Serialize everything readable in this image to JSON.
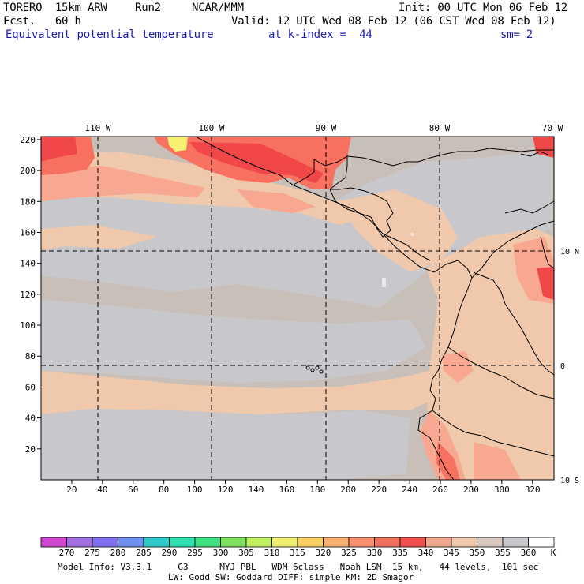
{
  "header": {
    "model": "TORERO  15km ARW",
    "run": "Run2",
    "center": "NCAR/MMM",
    "init": "Init: 00 UTC Mon 06 Feb 12",
    "fcst": "Fcst.   60 h",
    "valid": "Valid: 12 UTC Wed 08 Feb 12 (06 CST Wed 08 Feb 12)",
    "field": "Equivalent potential temperature",
    "level": "at k-index =  44",
    "smooth": "sm= 2"
  },
  "map": {
    "top_lon_labels": [
      "110 W",
      "100 W",
      "90 W",
      "80 W",
      "70 W"
    ],
    "right_lat_labels": [
      "10 N",
      "0",
      "10 S"
    ],
    "y_ticks": [
      "220",
      "200",
      "180",
      "160",
      "140",
      "120",
      "100",
      "80",
      "60",
      "40",
      "20"
    ],
    "x_ticks": [
      "20",
      "40",
      "60",
      "80",
      "100",
      "120",
      "140",
      "160",
      "180",
      "200",
      "220",
      "240",
      "260",
      "280",
      "300",
      "320"
    ],
    "colors": {
      "background": "#c8c0b8",
      "gray_band": "#c8c8cc",
      "peach": "#f0c8ac",
      "salmon": "#f8a890",
      "light_red": "#f87060",
      "red": "#f04848",
      "yellow": "#f8f070"
    }
  },
  "colorbar": {
    "labels": [
      "270",
      "275",
      "280",
      "285",
      "290",
      "295",
      "300",
      "305",
      "310",
      "315",
      "320",
      "325",
      "330",
      "335",
      "340",
      "345",
      "350",
      "355",
      "360"
    ],
    "unit": "K",
    "colors": [
      "#d048d0",
      "#a070e0",
      "#8070f0",
      "#7090f0",
      "#30c8c8",
      "#30e0b0",
      "#40e080",
      "#80e060",
      "#c0f060",
      "#f0f070",
      "#f8d060",
      "#f8b070",
      "#f89070",
      "#f07060",
      "#f05050",
      "#f0a890",
      "#f0c8ac",
      "#d8c8c0",
      "#c8c8cc",
      "#ffffff"
    ]
  },
  "footer": {
    "line1": "Model Info: V3.3.1     G3      MYJ PBL   WDM 6class   Noah LSM  15 km,   44 levels,  101 sec",
    "line2": "LW: Godd SW: Goddard DIFF: simple KM: 2D Smagor"
  }
}
